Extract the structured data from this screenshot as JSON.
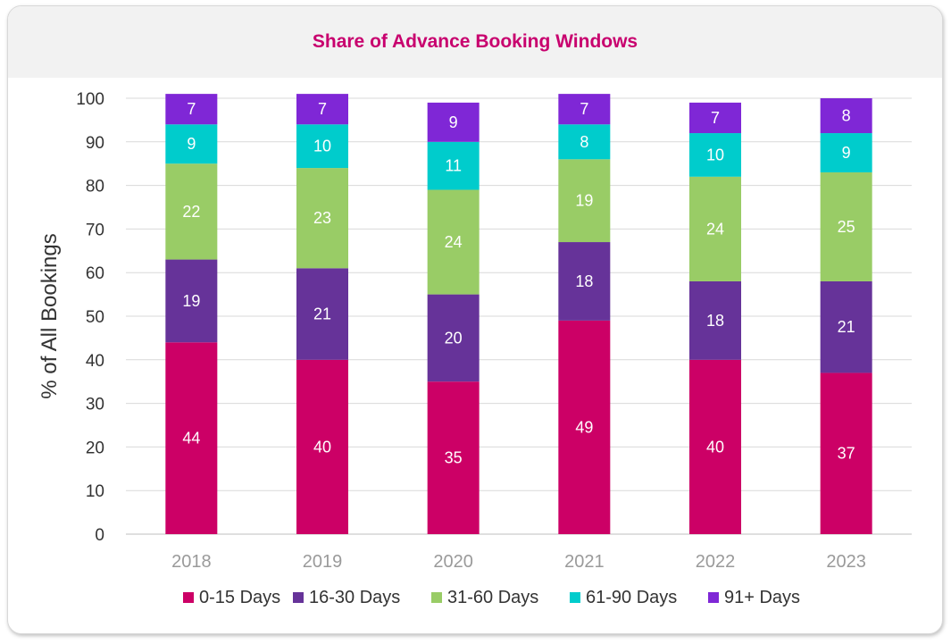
{
  "chart_data": {
    "type": "bar",
    "stacked": true,
    "title": "Share of Advance Booking Windows",
    "ylabel": "% of All Bookings",
    "xlabel": "",
    "ylim": [
      0,
      100
    ],
    "yticks": [
      0,
      10,
      20,
      30,
      40,
      50,
      60,
      70,
      80,
      90,
      100
    ],
    "grid": true,
    "legend_position": "bottom",
    "categories": [
      "2018",
      "2019",
      "2020",
      "2021",
      "2022",
      "2023"
    ],
    "series": [
      {
        "name": "0-15 Days",
        "color": "#cc0066",
        "values": [
          44,
          40,
          35,
          49,
          40,
          37
        ]
      },
      {
        "name": "16-30 Days",
        "color": "#663399",
        "values": [
          19,
          21,
          20,
          18,
          18,
          21
        ]
      },
      {
        "name": "31-60 Days",
        "color": "#99cc66",
        "values": [
          22,
          23,
          24,
          19,
          24,
          25
        ]
      },
      {
        "name": "61-90 Days",
        "color": "#00cccc",
        "values": [
          9,
          10,
          11,
          8,
          10,
          9
        ]
      },
      {
        "name": "91+ Days",
        "color": "#7f27d6",
        "values": [
          7,
          7,
          9,
          7,
          7,
          8
        ]
      }
    ]
  }
}
